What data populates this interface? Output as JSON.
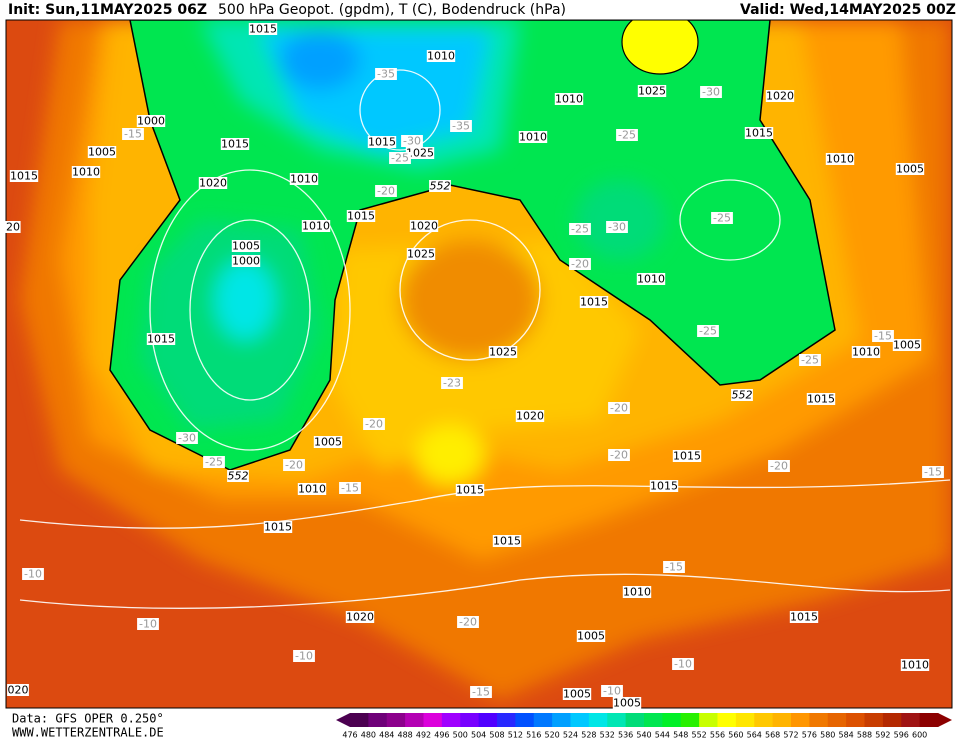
{
  "header": {
    "init": "Init: Sun,11MAY2025 06Z",
    "title": "500 hPa Geopot. (gpdm), T (C), Bodendruck (hPa)",
    "valid": "Valid: Wed,14MAY2025 00Z"
  },
  "map_labels": [
    "1015",
    "1010",
    "-35",
    "1010",
    "1025",
    "-30",
    "1020",
    "1000",
    "-15",
    "1015",
    "1015",
    "-30",
    "-35",
    "1010",
    "-25",
    "1015",
    "1005",
    "1025",
    "-25",
    "1010",
    "1015",
    "1010",
    "1020",
    "1010",
    "552",
    "-20",
    "1005",
    "20",
    "1015",
    "1010",
    "1020",
    "-25",
    "-30",
    "-25",
    "1005",
    "1000",
    "1025",
    "-20",
    "1010",
    "1015",
    "-25",
    "1015",
    "-15",
    "1005",
    "1010",
    "1025",
    "-25",
    "-23",
    "552",
    "1015",
    "-20",
    "1020",
    "-20",
    "-30",
    "1005",
    "-20",
    "1015",
    "-25",
    "-20",
    "552",
    "-20",
    "-15",
    "1010",
    "-15",
    "1015",
    "1015",
    "1015",
    "1015",
    "-15",
    "-10",
    "1010",
    "1015",
    "1020",
    "-20",
    "-10",
    "1005",
    "-10",
    "-10",
    "1010",
    "020",
    "-15",
    "1005",
    "-10",
    "1005"
  ],
  "colorbar": {
    "values": [
      476,
      480,
      484,
      488,
      492,
      496,
      500,
      504,
      508,
      512,
      516,
      520,
      524,
      528,
      532,
      536,
      540,
      544,
      548,
      552,
      556,
      560,
      564,
      568,
      572,
      576,
      580,
      584,
      588,
      592,
      596,
      600
    ],
    "colors": [
      "#4b0050",
      "#6e0078",
      "#8c008c",
      "#b400b4",
      "#dc00dc",
      "#a000ff",
      "#7800ff",
      "#5000ff",
      "#2828ff",
      "#0050ff",
      "#0078ff",
      "#00a0ff",
      "#00c8ff",
      "#00e6e6",
      "#00e6b4",
      "#00dc78",
      "#00e650",
      "#00f028",
      "#28f000",
      "#c8ff00",
      "#ffff00",
      "#ffe600",
      "#ffc800",
      "#ffb400",
      "#ff9600",
      "#f07800",
      "#e66400",
      "#dc5000",
      "#c83c00",
      "#b42800",
      "#a01414",
      "#8c0000"
    ]
  },
  "footer": {
    "source": "Data: GFS OPER 0.250°",
    "site": "WWW.WETTERZENTRALE.DE"
  }
}
